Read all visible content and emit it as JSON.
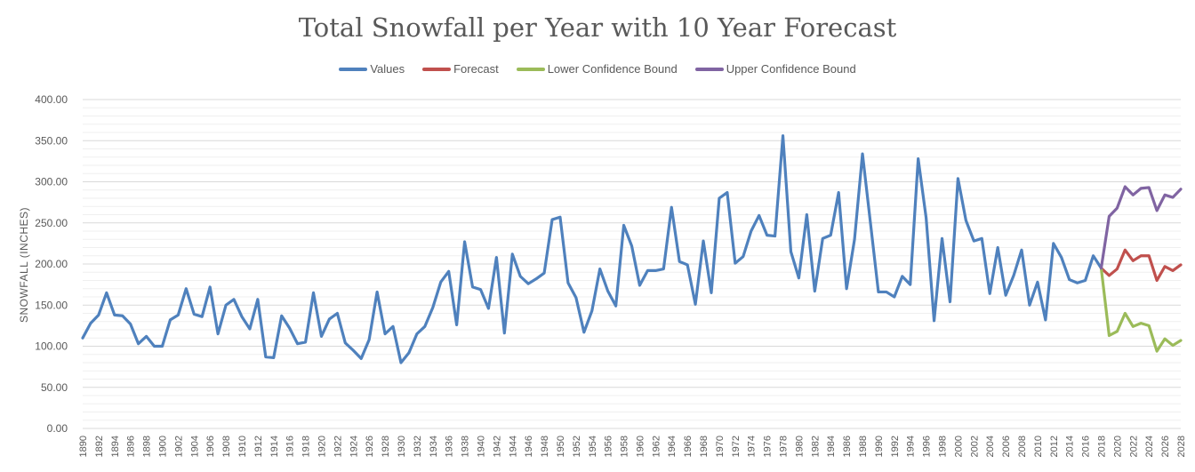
{
  "chart_data": {
    "type": "line",
    "title": "Total Snowfall per Year with 10 Year Forecast",
    "xlabel": "",
    "ylabel": "SNOWFALL (INCHES)",
    "ylim": [
      0,
      400
    ],
    "yticks": [
      "0.00",
      "50.00",
      "100.00",
      "150.00",
      "200.00",
      "250.00",
      "300.00",
      "350.00",
      "400.00"
    ],
    "x_start": 1890,
    "x_end": 2028,
    "xticks": [
      "1890",
      "1892",
      "1894",
      "1896",
      "1898",
      "1900",
      "1902",
      "1904",
      "1906",
      "1908",
      "1910",
      "1912",
      "1914",
      "1916",
      "1918",
      "1920",
      "1922",
      "1924",
      "1926",
      "1928",
      "1930",
      "1932",
      "1934",
      "1936",
      "1938",
      "1940",
      "1942",
      "1944",
      "1946",
      "1948",
      "1950",
      "1952",
      "1954",
      "1956",
      "1958",
      "1960",
      "1962",
      "1964",
      "1966",
      "1968",
      "1970",
      "1972",
      "1974",
      "1976",
      "1978",
      "1980",
      "1982",
      "1984",
      "1986",
      "1988",
      "1990",
      "1992",
      "1994",
      "1996",
      "1998",
      "2000",
      "2002",
      "2004",
      "2006",
      "2008",
      "2010",
      "2012",
      "2014",
      "2016",
      "2018",
      "2020",
      "2022",
      "2024",
      "2026",
      "2028"
    ],
    "grid": true,
    "legend_position": "top",
    "series": [
      {
        "name": "Values",
        "color": "#4F81BD",
        "x_start": 1890,
        "values": [
          110,
          128,
          138,
          165,
          138,
          137,
          127,
          103,
          112,
          100,
          100,
          132,
          138,
          170,
          139,
          136,
          172,
          115,
          150,
          157,
          136,
          121,
          157,
          87,
          86,
          137,
          122,
          103,
          105,
          165,
          112,
          133,
          140,
          104,
          95,
          85,
          108,
          166,
          115,
          124,
          80,
          92,
          115,
          124,
          147,
          178,
          191,
          126,
          227,
          172,
          169,
          146,
          208,
          116,
          212,
          185,
          176,
          182,
          189,
          254,
          257,
          177,
          159,
          117,
          143,
          194,
          167,
          149,
          247,
          222,
          174,
          192,
          192,
          194,
          269,
          203,
          199,
          151,
          228,
          165,
          280,
          287,
          201,
          209,
          240,
          259,
          235,
          234,
          356,
          215,
          183,
          260,
          167,
          231,
          235,
          287,
          170,
          230,
          334,
          250,
          166,
          166,
          160,
          185,
          175,
          328,
          256,
          131,
          231,
          154,
          304,
          253,
          228,
          231,
          164,
          220,
          162,
          186,
          217,
          150,
          178,
          132,
          225,
          208,
          181,
          177,
          180,
          210,
          195
        ]
      },
      {
        "name": "Forecast",
        "color": "#C0504D",
        "x_start": 2018,
        "values": [
          195,
          186,
          194,
          217,
          204,
          210,
          210,
          180,
          197,
          192,
          199
        ]
      },
      {
        "name": "Lower Confidence Bound",
        "color": "#9BBB59",
        "x_start": 2018,
        "values": [
          195,
          113,
          118,
          140,
          124,
          128,
          125,
          94,
          109,
          101,
          107
        ]
      },
      {
        "name": "Upper Confidence Bound",
        "color": "#8064A2",
        "x_start": 2018,
        "values": [
          195,
          258,
          268,
          294,
          284,
          292,
          293,
          265,
          284,
          281,
          291
        ]
      }
    ]
  }
}
